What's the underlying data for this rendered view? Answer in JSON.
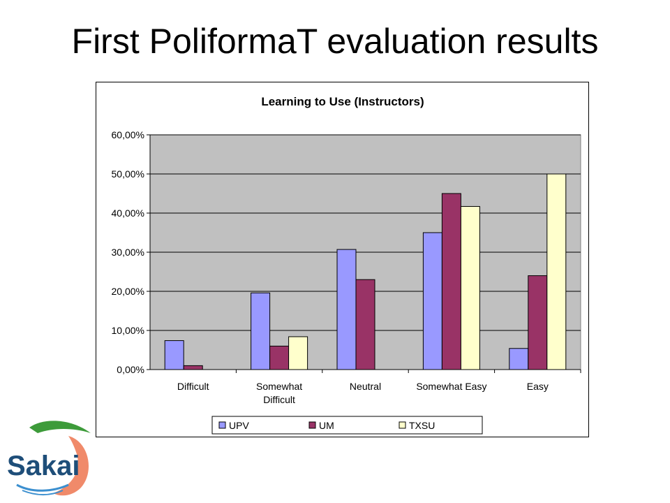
{
  "slide": {
    "title": "First PoliformaT evaluation results"
  },
  "logo": {
    "text": "Sakai"
  },
  "chart_data": {
    "type": "bar",
    "title": "Learning to Use (Instructors)",
    "categories": [
      [
        "Difficult"
      ],
      [
        "Somewhat",
        "Difficult"
      ],
      [
        "Neutral"
      ],
      [
        "Somewhat Easy"
      ],
      [
        "Easy"
      ]
    ],
    "series": [
      {
        "name": "UPV",
        "color": "#9999ff",
        "values": [
          7.4,
          19.6,
          30.7,
          35.0,
          5.4
        ]
      },
      {
        "name": "UM",
        "color": "#993366",
        "values": [
          1.0,
          6.0,
          23.0,
          45.0,
          24.0
        ]
      },
      {
        "name": "TXSU",
        "color": "#ffffcc",
        "values": [
          0,
          8.4,
          0,
          41.7,
          50.0
        ]
      }
    ],
    "ylim": [
      0,
      60
    ],
    "yticks": [
      "0,00%",
      "10,00%",
      "20,00%",
      "30,00%",
      "40,00%",
      "50,00%",
      "60,00%"
    ],
    "plot_background": "#c0c0c0",
    "grid": true,
    "legend": "bottom"
  }
}
